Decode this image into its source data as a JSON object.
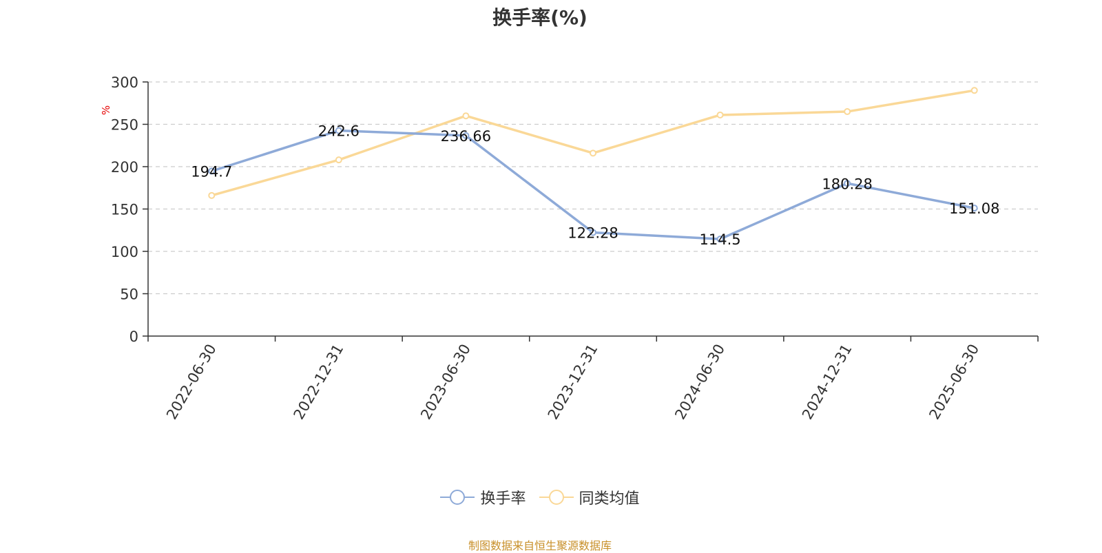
{
  "chart_data": {
    "type": "line",
    "title": "换手率(%)",
    "ylabel": "%",
    "xlabel": "",
    "categories": [
      "2022-06-30",
      "2022-12-31",
      "2023-06-30",
      "2023-12-31",
      "2024-06-30",
      "2024-12-31",
      "2025-06-30"
    ],
    "ylim": [
      0,
      300
    ],
    "yticks": [
      0,
      50,
      100,
      150,
      200,
      250,
      300
    ],
    "grid": true,
    "legend_position": "bottom",
    "series": [
      {
        "name": "换手率",
        "color": "#8eaad8",
        "values": [
          194.7,
          242.6,
          236.66,
          122.28,
          114.5,
          180.28,
          151.08
        ],
        "show_labels": true
      },
      {
        "name": "同类均值",
        "color": "#fad897",
        "values": [
          166,
          208,
          260,
          216,
          261,
          265,
          290
        ],
        "show_labels": false
      }
    ]
  },
  "footer": {
    "source": "制图数据来自恒生聚源数据库"
  }
}
